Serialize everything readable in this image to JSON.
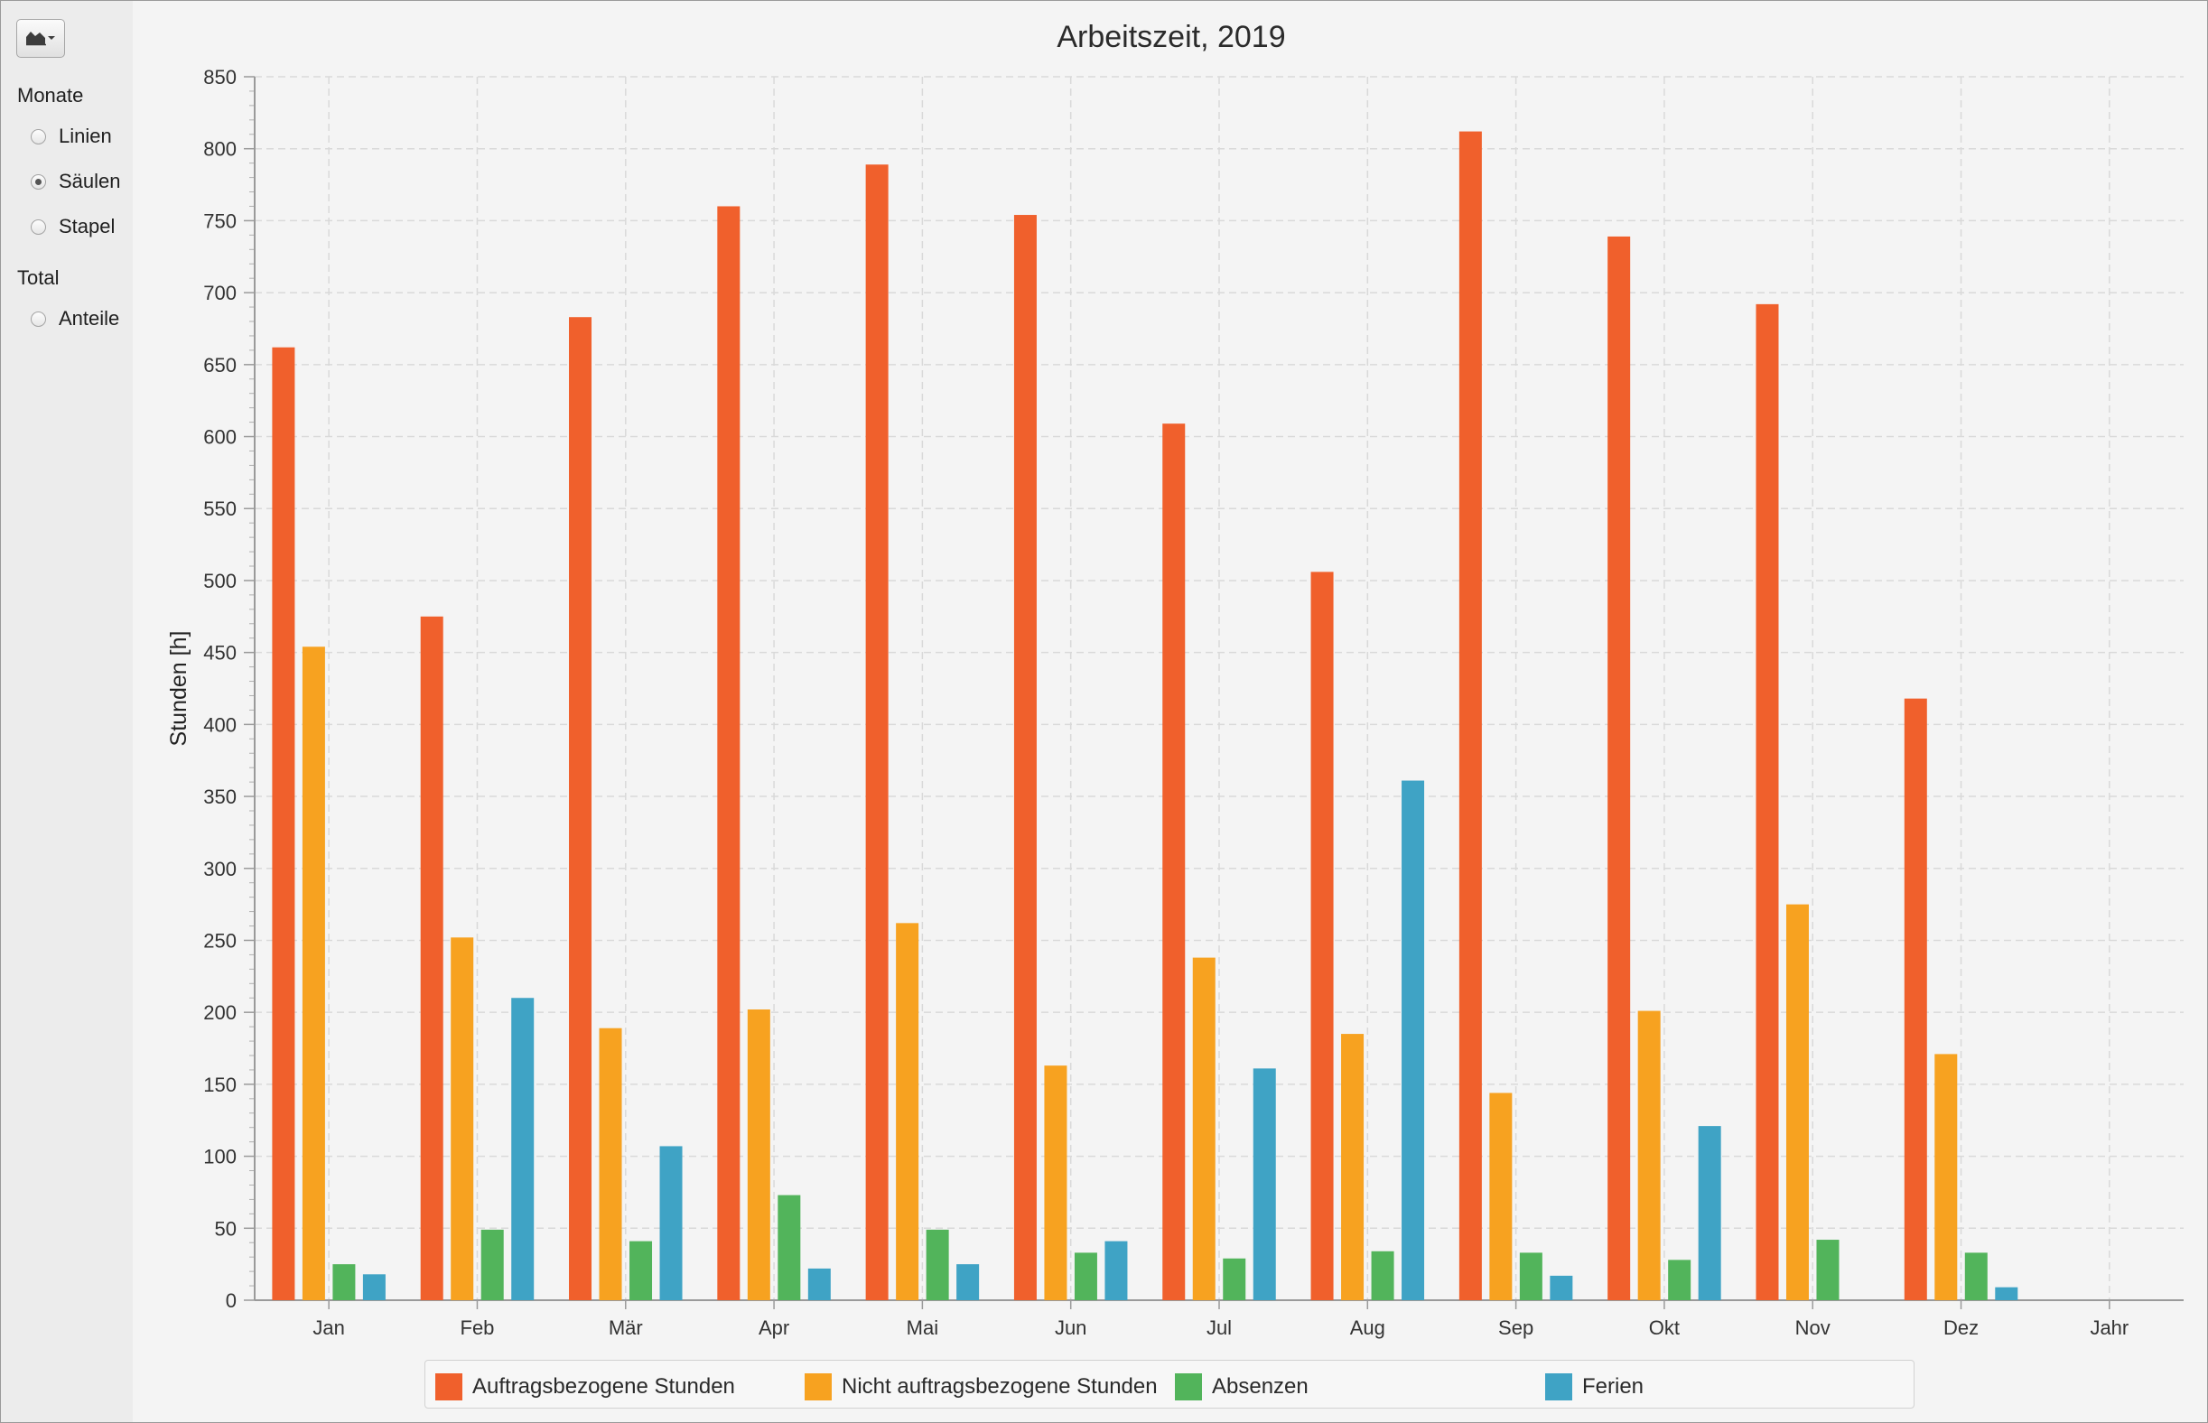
{
  "sidebar": {
    "chart_type_button_icon": "area-chart-icon",
    "groups": [
      {
        "label": "Monate",
        "options": [
          {
            "label": "Linien",
            "selected": false
          },
          {
            "label": "Säulen",
            "selected": true
          },
          {
            "label": "Stapel",
            "selected": false
          }
        ]
      },
      {
        "label": "Total",
        "options": [
          {
            "label": "Anteile",
            "selected": false
          }
        ]
      }
    ]
  },
  "chart_data": {
    "type": "bar",
    "title": "Arbeitszeit, 2019",
    "xlabel": "",
    "ylabel": "Stunden [h]",
    "ylim": [
      0,
      850
    ],
    "ymajor_step": 50,
    "grid": true,
    "legend_position": "bottom",
    "categories": [
      "Jan",
      "Feb",
      "Mär",
      "Apr",
      "Mai",
      "Jun",
      "Jul",
      "Aug",
      "Sep",
      "Okt",
      "Nov",
      "Dez",
      "Jahr"
    ],
    "series": [
      {
        "name": "Auftragsbezogene Stunden",
        "color": "#f0602c",
        "values": [
          662,
          475,
          683,
          760,
          789,
          754,
          609,
          506,
          812,
          739,
          692,
          418,
          null
        ]
      },
      {
        "name": "Nicht auftragsbezogene Stunden",
        "color": "#f7a220",
        "values": [
          454,
          252,
          189,
          202,
          262,
          163,
          238,
          185,
          144,
          201,
          275,
          171,
          null
        ]
      },
      {
        "name": "Absenzen",
        "color": "#52b45b",
        "values": [
          25,
          49,
          41,
          73,
          49,
          33,
          29,
          34,
          33,
          28,
          42,
          33,
          null
        ]
      },
      {
        "name": "Ferien",
        "color": "#3fa3c5",
        "values": [
          18,
          210,
          107,
          22,
          25,
          41,
          161,
          361,
          17,
          121,
          null,
          9,
          null
        ]
      }
    ]
  }
}
